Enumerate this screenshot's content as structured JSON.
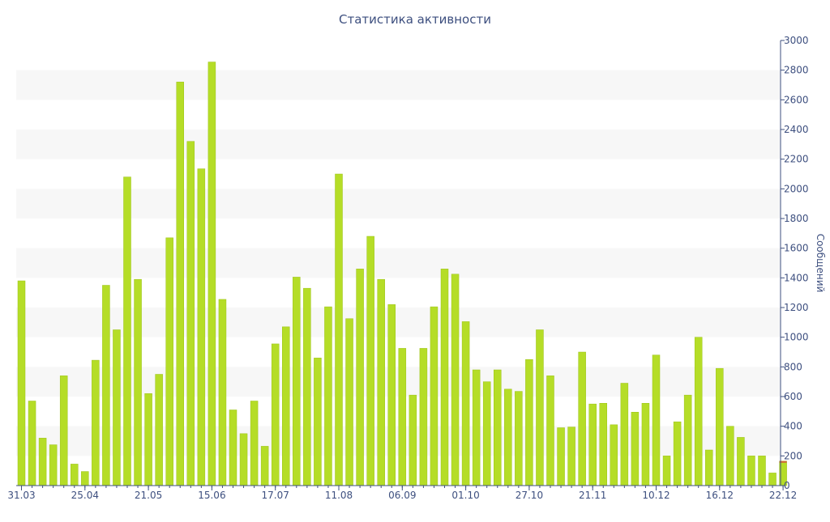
{
  "chart_data": {
    "type": "bar",
    "title": "Статистика активности",
    "xlabel": "",
    "ylabel": "Сообщений",
    "ylim": [
      0,
      3000
    ],
    "yticks": [
      0,
      200,
      400,
      600,
      800,
      1000,
      1200,
      1400,
      1600,
      1800,
      2000,
      2200,
      2400,
      2600,
      2800,
      3000
    ],
    "y_axis_side": "right",
    "grid": "alternating horizontal bands",
    "xtick_labels": [
      "31.03",
      "25.04",
      "21.05",
      "15.06",
      "17.07",
      "11.08",
      "06.09",
      "01.10",
      "27.10",
      "21.11",
      "10.12",
      "16.12",
      "22.12"
    ],
    "xtick_bar_index": [
      0,
      6,
      12,
      18,
      24,
      30,
      36,
      42,
      48,
      54,
      60,
      66,
      72
    ],
    "colors": {
      "bar": "#b5dd27",
      "bar_stroke": "#9cc219",
      "last_bar_top": "#d2643c",
      "axis": "#3d4f7f",
      "band": "#f7f7f7"
    },
    "series": [
      {
        "values": [
          1380,
          570,
          320,
          275,
          740,
          145,
          95,
          845,
          1350,
          1050,
          2080,
          1390,
          620,
          750,
          1670,
          2720,
          2320,
          2135,
          2855,
          1255,
          510,
          350,
          570,
          265,
          955,
          1070,
          1405,
          1330,
          860,
          1205,
          2100,
          1125,
          1460,
          1680,
          1390,
          1220,
          925,
          610,
          925,
          1205,
          1460,
          1425,
          1105,
          780,
          700,
          780,
          650,
          635,
          850,
          1050,
          740,
          390,
          395,
          900,
          550,
          555,
          410,
          690,
          495,
          555,
          880,
          200,
          430,
          610,
          1000,
          240,
          790,
          400,
          325,
          200,
          200,
          85,
          165
        ]
      }
    ]
  }
}
